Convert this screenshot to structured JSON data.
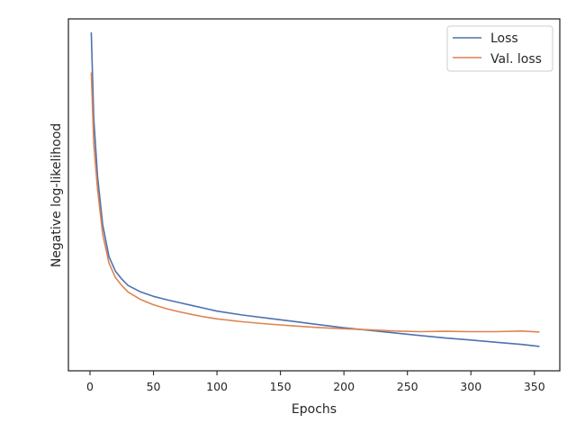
{
  "chart_data": {
    "type": "line",
    "title": "",
    "xlabel": "Epochs",
    "ylabel": "Negative log-likelihood",
    "xlim": [
      -17,
      370
    ],
    "xticks": [
      0,
      50,
      100,
      150,
      200,
      250,
      300,
      350
    ],
    "y_tick_labels_shown": false,
    "grid": false,
    "legend_position": "upper right",
    "series": [
      {
        "name": "Loss",
        "color": "#4c72b0",
        "points": [
          [
            1,
            1.0
          ],
          [
            3,
            0.73
          ],
          [
            6,
            0.55
          ],
          [
            10,
            0.4
          ],
          [
            15,
            0.3
          ],
          [
            20,
            0.255
          ],
          [
            25,
            0.23
          ],
          [
            30,
            0.21
          ],
          [
            40,
            0.19
          ],
          [
            50,
            0.176
          ],
          [
            60,
            0.166
          ],
          [
            70,
            0.157
          ],
          [
            80,
            0.148
          ],
          [
            90,
            0.139
          ],
          [
            100,
            0.13
          ],
          [
            120,
            0.118
          ],
          [
            140,
            0.108
          ],
          [
            160,
            0.098
          ],
          [
            180,
            0.088
          ],
          [
            200,
            0.078
          ],
          [
            220,
            0.07
          ],
          [
            240,
            0.062
          ],
          [
            260,
            0.054
          ],
          [
            280,
            0.046
          ],
          [
            300,
            0.04
          ],
          [
            320,
            0.033
          ],
          [
            340,
            0.026
          ],
          [
            354,
            0.02
          ]
        ]
      },
      {
        "name": "Val. loss",
        "color": "#dd8452",
        "points": [
          [
            1,
            0.875
          ],
          [
            3,
            0.65
          ],
          [
            6,
            0.51
          ],
          [
            10,
            0.37
          ],
          [
            15,
            0.28
          ],
          [
            20,
            0.235
          ],
          [
            25,
            0.21
          ],
          [
            30,
            0.19
          ],
          [
            40,
            0.166
          ],
          [
            50,
            0.15
          ],
          [
            60,
            0.138
          ],
          [
            70,
            0.128
          ],
          [
            80,
            0.12
          ],
          [
            90,
            0.112
          ],
          [
            100,
            0.106
          ],
          [
            120,
            0.097
          ],
          [
            140,
            0.09
          ],
          [
            160,
            0.084
          ],
          [
            180,
            0.079
          ],
          [
            200,
            0.075
          ],
          [
            220,
            0.072
          ],
          [
            240,
            0.068
          ],
          [
            260,
            0.066
          ],
          [
            280,
            0.067
          ],
          [
            300,
            0.066
          ],
          [
            320,
            0.066
          ],
          [
            340,
            0.068
          ],
          [
            354,
            0.065
          ]
        ]
      }
    ]
  }
}
